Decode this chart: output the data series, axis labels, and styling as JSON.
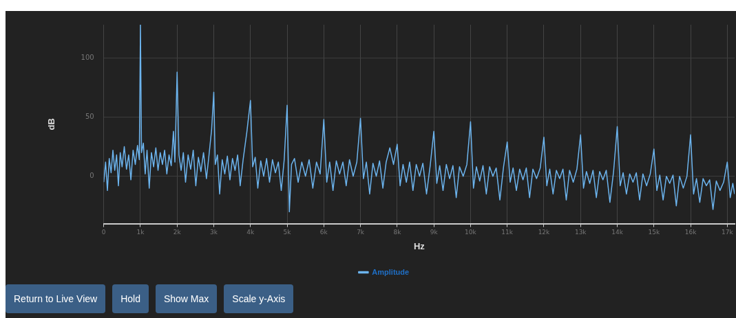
{
  "chart_data": {
    "type": "line",
    "xlabel": "Hz",
    "ylabel": "dB",
    "legend": "bottom",
    "grid": true,
    "marker": "none",
    "line_style": "solid",
    "xlim": [
      0,
      17200
    ],
    "ylim": [
      -40,
      128
    ],
    "xticks": [
      {
        "value": 0,
        "label": "0"
      },
      {
        "value": 1000,
        "label": "1k"
      },
      {
        "value": 2000,
        "label": "2k"
      },
      {
        "value": 3000,
        "label": "3k"
      },
      {
        "value": 4000,
        "label": "4k"
      },
      {
        "value": 5000,
        "label": "5k"
      },
      {
        "value": 6000,
        "label": "6k"
      },
      {
        "value": 7000,
        "label": "7k"
      },
      {
        "value": 8000,
        "label": "8k"
      },
      {
        "value": 9000,
        "label": "9k"
      },
      {
        "value": 10000,
        "label": "10k"
      },
      {
        "value": 11000,
        "label": "11k"
      },
      {
        "value": 12000,
        "label": "12k"
      },
      {
        "value": 13000,
        "label": "13k"
      },
      {
        "value": 14000,
        "label": "14k"
      },
      {
        "value": 15000,
        "label": "15k"
      },
      {
        "value": 16000,
        "label": "16k"
      },
      {
        "value": 17000,
        "label": "17k"
      }
    ],
    "yticks": [
      0,
      50,
      100
    ],
    "annotations": [
      "Return to Live View",
      "Hold",
      "Show Max",
      "Scale y-Axis"
    ],
    "series": [
      {
        "name": "Amplitude",
        "color": "#6cb4ee",
        "x": [
          0,
          50,
          100,
          150,
          200,
          250,
          300,
          350,
          400,
          450,
          500,
          560,
          620,
          680,
          740,
          800,
          860,
          920,
          970,
          1000,
          1030,
          1080,
          1130,
          1180,
          1240,
          1300,
          1360,
          1420,
          1480,
          1540,
          1600,
          1660,
          1720,
          1780,
          1840,
          1900,
          1940,
          2000,
          2050,
          2110,
          2170,
          2230,
          2300,
          2370,
          2440,
          2510,
          2580,
          2650,
          2720,
          2800,
          2860,
          2940,
          3000,
          3040,
          3100,
          3160,
          3230,
          3300,
          3370,
          3440,
          3510,
          3580,
          3650,
          3720,
          3800,
          3900,
          4000,
          4060,
          4130,
          4200,
          4280,
          4360,
          4440,
          4520,
          4600,
          4680,
          4760,
          4840,
          4920,
          5000,
          5060,
          5120,
          5200,
          5300,
          5400,
          5500,
          5600,
          5700,
          5800,
          5900,
          6000,
          6080,
          6160,
          6250,
          6340,
          6430,
          6520,
          6610,
          6700,
          6800,
          6900,
          7000,
          7080,
          7160,
          7250,
          7340,
          7430,
          7520,
          7610,
          7700,
          7800,
          7900,
          8000,
          8080,
          8160,
          8250,
          8340,
          8430,
          8520,
          8610,
          8700,
          8800,
          8900,
          9000,
          9080,
          9160,
          9250,
          9340,
          9430,
          9520,
          9610,
          9700,
          9800,
          9900,
          10000,
          10080,
          10160,
          10250,
          10340,
          10430,
          10520,
          10610,
          10700,
          10800,
          10900,
          11000,
          11080,
          11160,
          11250,
          11340,
          11430,
          11520,
          11610,
          11700,
          11800,
          11900,
          12000,
          12080,
          12160,
          12250,
          12340,
          12430,
          12520,
          12610,
          12700,
          12800,
          12900,
          13000,
          13080,
          13160,
          13250,
          13340,
          13430,
          13520,
          13610,
          13700,
          13800,
          13900,
          14000,
          14080,
          14160,
          14250,
          14340,
          14430,
          14520,
          14610,
          14700,
          14800,
          14900,
          15000,
          15080,
          15160,
          15250,
          15340,
          15430,
          15520,
          15610,
          15700,
          15800,
          15900,
          16000,
          16080,
          16160,
          16250,
          16340,
          16430,
          16520,
          16610,
          16700,
          16800,
          16900,
          17000,
          17080,
          17150,
          17200
        ],
        "values": [
          -5,
          12,
          -12,
          15,
          3,
          22,
          5,
          18,
          -8,
          20,
          8,
          25,
          6,
          18,
          -3,
          22,
          10,
          26,
          14,
          128,
          20,
          28,
          2,
          22,
          -10,
          20,
          8,
          24,
          5,
          20,
          10,
          22,
          2,
          18,
          9,
          38,
          12,
          88,
          18,
          5,
          20,
          -5,
          18,
          6,
          22,
          -8,
          16,
          4,
          20,
          -2,
          15,
          39,
          71,
          10,
          18,
          -15,
          14,
          2,
          17,
          -3,
          15,
          5,
          18,
          -8,
          14,
          37,
          64,
          8,
          16,
          -10,
          13,
          0,
          15,
          -5,
          14,
          3,
          12,
          -12,
          14,
          60,
          -30,
          10,
          15,
          -5,
          12,
          0,
          14,
          -10,
          12,
          2,
          48,
          -5,
          12,
          -12,
          13,
          2,
          12,
          -8,
          14,
          0,
          12,
          49,
          -2,
          12,
          -15,
          11,
          0,
          13,
          -10,
          12,
          24,
          10,
          27,
          -8,
          10,
          -5,
          12,
          -12,
          10,
          0,
          11,
          -15,
          9,
          38,
          -6,
          9,
          -12,
          10,
          -2,
          9,
          -18,
          8,
          0,
          10,
          46,
          -10,
          8,
          -4,
          9,
          -15,
          8,
          0,
          7,
          -20,
          8,
          29,
          -5,
          7,
          -12,
          6,
          -3,
          7,
          -18,
          6,
          -2,
          7,
          33,
          -8,
          6,
          -15,
          5,
          -2,
          6,
          -20,
          5,
          -5,
          6,
          35,
          -10,
          4,
          -6,
          5,
          -18,
          4,
          -3,
          5,
          -22,
          4,
          42,
          -8,
          3,
          -15,
          2,
          -5,
          3,
          -20,
          2,
          -8,
          2,
          23,
          -12,
          1,
          -20,
          0,
          -6,
          1,
          -25,
          0,
          -10,
          0,
          35,
          -15,
          -2,
          -22,
          -2,
          -8,
          -3,
          -28,
          -4,
          -12,
          -5,
          12,
          -18,
          -6,
          -15
        ]
      }
    ]
  }
}
